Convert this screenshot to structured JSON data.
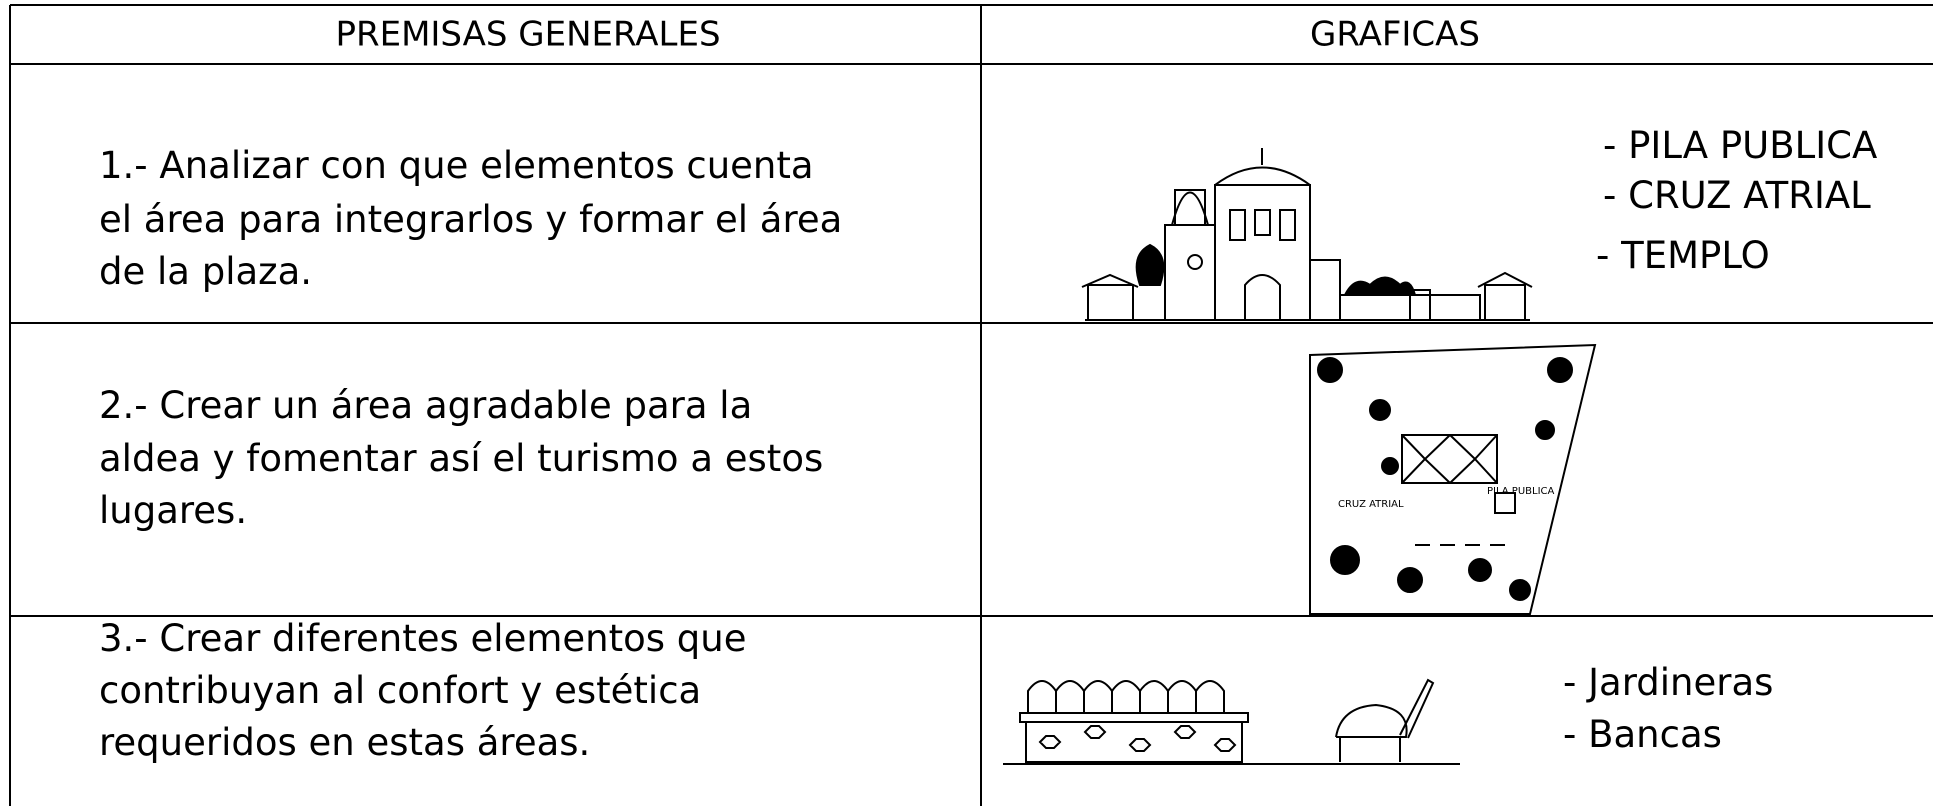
{
  "table": {
    "headers": [
      "PREMISAS GENERALES",
      "GRAFICAS"
    ],
    "rows": [
      {
        "premise": [
          "1.-  Analizar con que elementos cuenta",
          "el área para integrarlos y formar el área",
          "de la plaza."
        ],
        "labels": [
          "-  PILA PUBLICA",
          "-  CRUZ ATRIAL",
          "-  TEMPLO"
        ]
      },
      {
        "premise": [
          "2.-  Crear un área agradable para la",
          "aldea y fomentar así el turismo a estos",
          "lugares."
        ],
        "plan_labels": [
          "PILA PUBLICA",
          "CRUZ ATRIAL"
        ]
      },
      {
        "premise": [
          "3.-  Crear diferentes elementos que",
          "contribuyan al confort y estética",
          "requeridos en estas áreas."
        ],
        "labels": [
          "-  Jardineras",
          "-  Bancas"
        ]
      }
    ]
  }
}
